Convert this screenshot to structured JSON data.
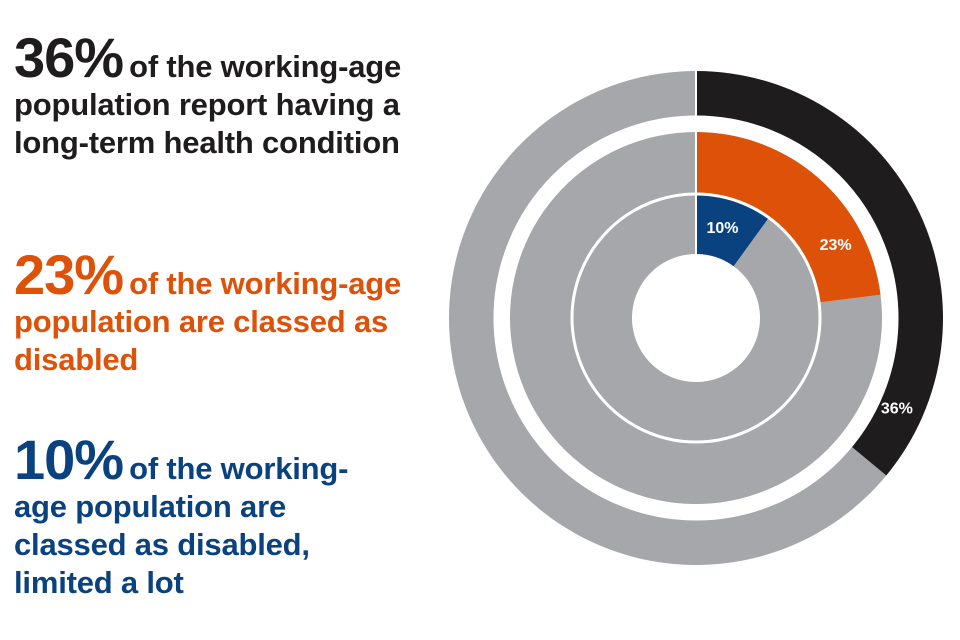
{
  "colors": {
    "stat_1": "#1f1c1d",
    "stat_2": "#de5108",
    "stat_3": "#0a4280",
    "remainder": "#a6a7aa",
    "divider": "#ffffff"
  },
  "stats": [
    {
      "big": "36%",
      "text": "of the working-age population report having a long-term health condition"
    },
    {
      "big": "23%",
      "text": "of the working-age population are classed as disabled"
    },
    {
      "big": "10%",
      "text": "of the working-age population are classed as disabled, limited a lot"
    }
  ],
  "chart_data": {
    "type": "pie",
    "rings": [
      {
        "value": 36,
        "label": "36%",
        "color": "#1f1c1d"
      },
      {
        "value": 23,
        "label": "23%",
        "color": "#de5108"
      },
      {
        "value": 10,
        "label": "10%",
        "color": "#0a4280"
      }
    ],
    "remainder_color": "#a6a7aa"
  }
}
